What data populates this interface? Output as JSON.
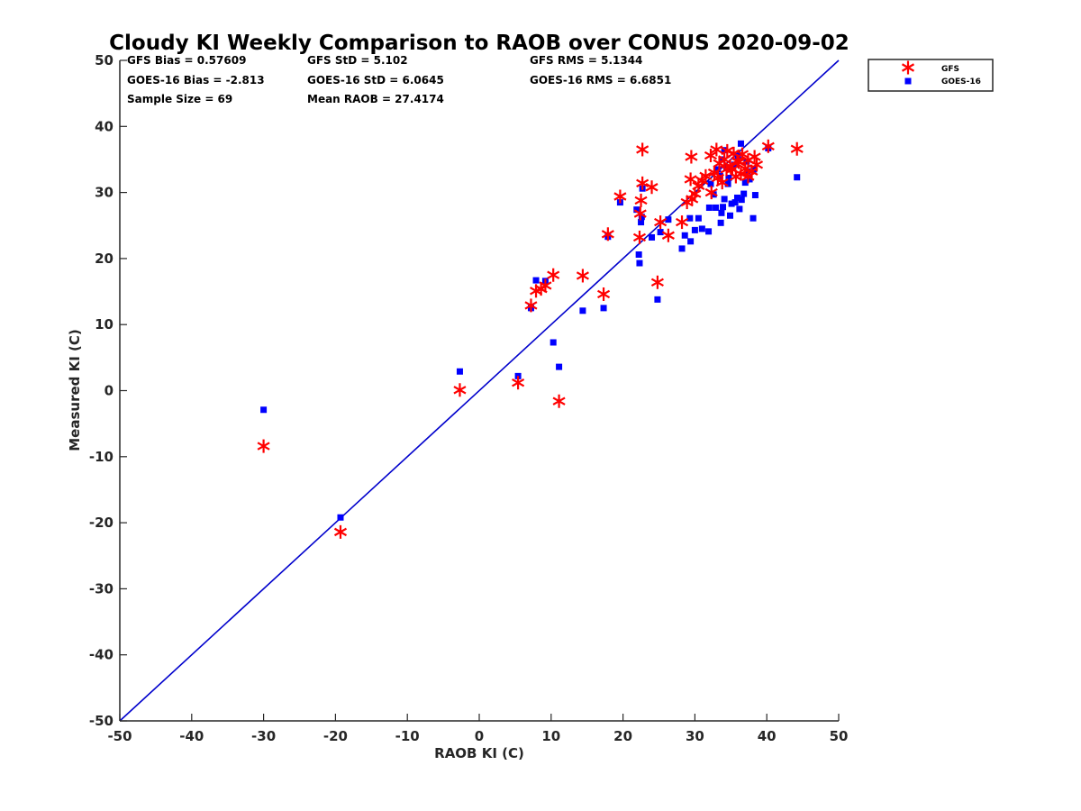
{
  "chart_data": {
    "type": "scatter",
    "title": "Cloudy KI Weekly Comparison to RAOB over CONUS 2020-09-02",
    "xlabel": "RAOB KI (C)",
    "ylabel": "Measured KI (C)",
    "xlim": [
      -50,
      50
    ],
    "ylim": [
      -50,
      50
    ],
    "xticks": [
      "-50",
      "-40",
      "-30",
      "-20",
      "-10",
      "0",
      "10",
      "20",
      "30",
      "40",
      "50"
    ],
    "yticks": [
      "-50",
      "-40",
      "-30",
      "-20",
      "-10",
      "0",
      "10",
      "20",
      "30",
      "40",
      "50"
    ],
    "grid": false,
    "legend_position": "top-right outside",
    "reference_line": {
      "from": [
        -50,
        -50
      ],
      "to": [
        50,
        50
      ],
      "color": "#0000cc"
    },
    "stats": [
      [
        "GFS Bias = 0.57609",
        "GFS StD = 5.102",
        "GFS RMS = 5.1344"
      ],
      [
        "GOES-16 Bias = -2.813",
        "GOES-16 StD = 6.0645",
        "GOES-16 RMS = 6.6851"
      ],
      [
        "Sample Size = 69",
        "Mean RAOB = 27.4174",
        ""
      ]
    ],
    "series": [
      {
        "name": "GFS",
        "marker": "asterisk",
        "color": "#ff0000",
        "points": [
          [
            -30,
            -8.4
          ],
          [
            -19.3,
            -21.4
          ],
          [
            -2.7,
            0.1
          ],
          [
            5.4,
            1.2
          ],
          [
            11.1,
            -1.6
          ],
          [
            7.2,
            12.9
          ],
          [
            7.9,
            15.1
          ],
          [
            8.6,
            15.4
          ],
          [
            9.2,
            15.9
          ],
          [
            10.3,
            17.5
          ],
          [
            14.4,
            17.4
          ],
          [
            17.3,
            14.6
          ],
          [
            17.9,
            23.7
          ],
          [
            19.6,
            29.4
          ],
          [
            22.3,
            23.2
          ],
          [
            22.4,
            26.8
          ],
          [
            22.5,
            28.8
          ],
          [
            22.7,
            31.4
          ],
          [
            22.7,
            36.5
          ],
          [
            24.0,
            30.8
          ],
          [
            24.8,
            16.4
          ],
          [
            25.2,
            25.5
          ],
          [
            26.3,
            23.5
          ],
          [
            28.2,
            25.5
          ],
          [
            28.9,
            28.5
          ],
          [
            29.4,
            32.0
          ],
          [
            29.5,
            35.4
          ],
          [
            29.6,
            29.0
          ],
          [
            30.0,
            29.8
          ],
          [
            30.5,
            31.0
          ],
          [
            31.0,
            31.8
          ],
          [
            31.5,
            32.5
          ],
          [
            32.2,
            35.6
          ],
          [
            32.3,
            30.0
          ],
          [
            32.7,
            33.0
          ],
          [
            33.0,
            36.5
          ],
          [
            33.4,
            34.4
          ],
          [
            33.8,
            31.5
          ],
          [
            34.1,
            35.0
          ],
          [
            34.4,
            33.5
          ],
          [
            34.5,
            36.3
          ],
          [
            34.9,
            34.0
          ],
          [
            35.2,
            33.5
          ],
          [
            35.4,
            35.9
          ],
          [
            35.7,
            32.4
          ],
          [
            36.1,
            34.6
          ],
          [
            36.4,
            32.8
          ],
          [
            36.6,
            35.8
          ],
          [
            37.0,
            33.6
          ],
          [
            37.4,
            34.9
          ],
          [
            37.9,
            33.2
          ],
          [
            38.3,
            35.4
          ],
          [
            38.6,
            34.2
          ],
          [
            40.2,
            37.0
          ],
          [
            44.2,
            36.6
          ],
          [
            33.2,
            32.2
          ],
          [
            35.9,
            34.8
          ],
          [
            37.4,
            32.4
          ]
        ]
      },
      {
        "name": "GOES-16",
        "marker": "square",
        "color": "#0000ff",
        "points": [
          [
            -30,
            -2.9
          ],
          [
            -19.3,
            -19.2
          ],
          [
            -2.7,
            2.9
          ],
          [
            5.4,
            2.2
          ],
          [
            7.2,
            12.5
          ],
          [
            7.9,
            16.7
          ],
          [
            9.2,
            16.6
          ],
          [
            10.3,
            7.3
          ],
          [
            11.1,
            3.6
          ],
          [
            14.4,
            12.1
          ],
          [
            17.3,
            12.5
          ],
          [
            17.9,
            23.3
          ],
          [
            19.6,
            28.5
          ],
          [
            21.9,
            27.4
          ],
          [
            22.2,
            20.6
          ],
          [
            22.3,
            19.3
          ],
          [
            22.5,
            25.5
          ],
          [
            22.6,
            26.3
          ],
          [
            22.7,
            30.6
          ],
          [
            24.0,
            23.2
          ],
          [
            24.8,
            13.8
          ],
          [
            25.2,
            24.0
          ],
          [
            26.3,
            25.9
          ],
          [
            28.2,
            21.5
          ],
          [
            28.6,
            23.5
          ],
          [
            29.3,
            26.1
          ],
          [
            29.4,
            22.6
          ],
          [
            30.0,
            24.3
          ],
          [
            30.5,
            26.1
          ],
          [
            31.0,
            24.5
          ],
          [
            31.9,
            24.1
          ],
          [
            32.0,
            27.7
          ],
          [
            32.2,
            31.3
          ],
          [
            32.6,
            29.7
          ],
          [
            32.9,
            27.7
          ],
          [
            33.2,
            33.5
          ],
          [
            33.5,
            32.5
          ],
          [
            33.6,
            25.4
          ],
          [
            33.7,
            26.9
          ],
          [
            33.9,
            27.8
          ],
          [
            33.8,
            35.0
          ],
          [
            34.1,
            29.0
          ],
          [
            34.1,
            36.4
          ],
          [
            34.6,
            31.3
          ],
          [
            34.7,
            32.2
          ],
          [
            34.9,
            26.5
          ],
          [
            35.1,
            28.3
          ],
          [
            35.5,
            34.2
          ],
          [
            35.6,
            28.5
          ],
          [
            35.9,
            29.2
          ],
          [
            36.2,
            27.5
          ],
          [
            36.4,
            37.4
          ],
          [
            36.5,
            28.9
          ],
          [
            36.8,
            29.8
          ],
          [
            37.0,
            31.5
          ],
          [
            37.2,
            34.7
          ],
          [
            37.3,
            33.2
          ],
          [
            37.6,
            32.0
          ],
          [
            38.1,
            26.1
          ],
          [
            38.2,
            33.5
          ],
          [
            38.4,
            29.6
          ],
          [
            40.2,
            36.7
          ],
          [
            44.2,
            32.3
          ],
          [
            36.0,
            35.5
          ],
          [
            34.4,
            33.7
          ]
        ]
      }
    ]
  }
}
